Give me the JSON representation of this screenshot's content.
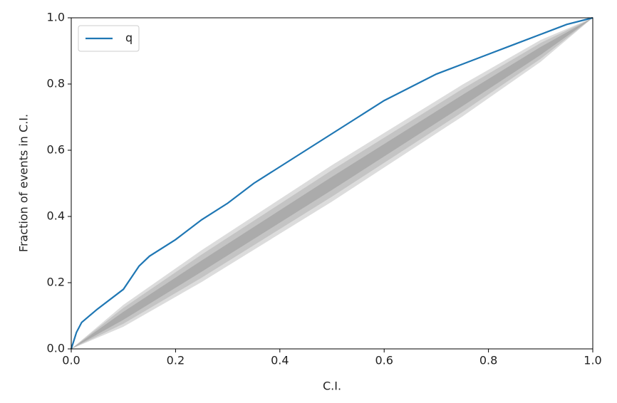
{
  "chart_data": {
    "type": "line",
    "xlabel": "C.I.",
    "ylabel": "Fraction of events in C.I.",
    "x": [
      0,
      0.01,
      0.02,
      0.05,
      0.1,
      0.13,
      0.15,
      0.2,
      0.25,
      0.3,
      0.35,
      0.4,
      0.45,
      0.5,
      0.55,
      0.6,
      0.65,
      0.7,
      0.75,
      0.8,
      0.85,
      0.9,
      0.95,
      1
    ],
    "series": [
      {
        "name": "q",
        "color": "#1f77b4",
        "values": [
          0,
          0.05,
          0.08,
          0.12,
          0.18,
          0.25,
          0.28,
          0.33,
          0.39,
          0.44,
          0.5,
          0.55,
          0.6,
          0.65,
          0.7,
          0.75,
          0.79,
          0.83,
          0.86,
          0.89,
          0.92,
          0.95,
          0.98,
          1
        ]
      }
    ],
    "bands": [
      {
        "color": "#dcdcdc",
        "x": [
          0,
          0.1,
          0.25,
          0.5,
          0.75,
          0.9,
          1
        ],
        "lower": [
          0,
          0.067,
          0.202,
          0.445,
          0.702,
          0.867,
          1
        ],
        "upper": [
          0,
          0.133,
          0.298,
          0.555,
          0.798,
          0.933,
          1
        ]
      },
      {
        "color": "#c4c4c4",
        "x": [
          0,
          0.1,
          0.25,
          0.5,
          0.75,
          0.9,
          1
        ],
        "lower": [
          0,
          0.076,
          0.215,
          0.46,
          0.715,
          0.876,
          1
        ],
        "upper": [
          0,
          0.124,
          0.285,
          0.54,
          0.785,
          0.924,
          1
        ]
      },
      {
        "color": "#ababab",
        "x": [
          0,
          0.1,
          0.25,
          0.5,
          0.75,
          0.9,
          1
        ],
        "lower": [
          0,
          0.088,
          0.233,
          0.48,
          0.733,
          0.888,
          1
        ],
        "upper": [
          0,
          0.112,
          0.267,
          0.52,
          0.767,
          0.912,
          1
        ]
      }
    ],
    "xlim": [
      0,
      1
    ],
    "ylim": [
      0,
      1
    ],
    "xticks": [
      {
        "value": 0,
        "label": "0.0"
      },
      0.2,
      0.4,
      0.6,
      0.8,
      {
        "value": 1,
        "label": "1.0"
      }
    ],
    "yticks": [
      {
        "value": 0,
        "label": "0.0"
      },
      0.2,
      0.4,
      0.6,
      0.8,
      {
        "value": 1,
        "label": "1.0"
      }
    ],
    "grid": false,
    "legend": "upper-left"
  }
}
